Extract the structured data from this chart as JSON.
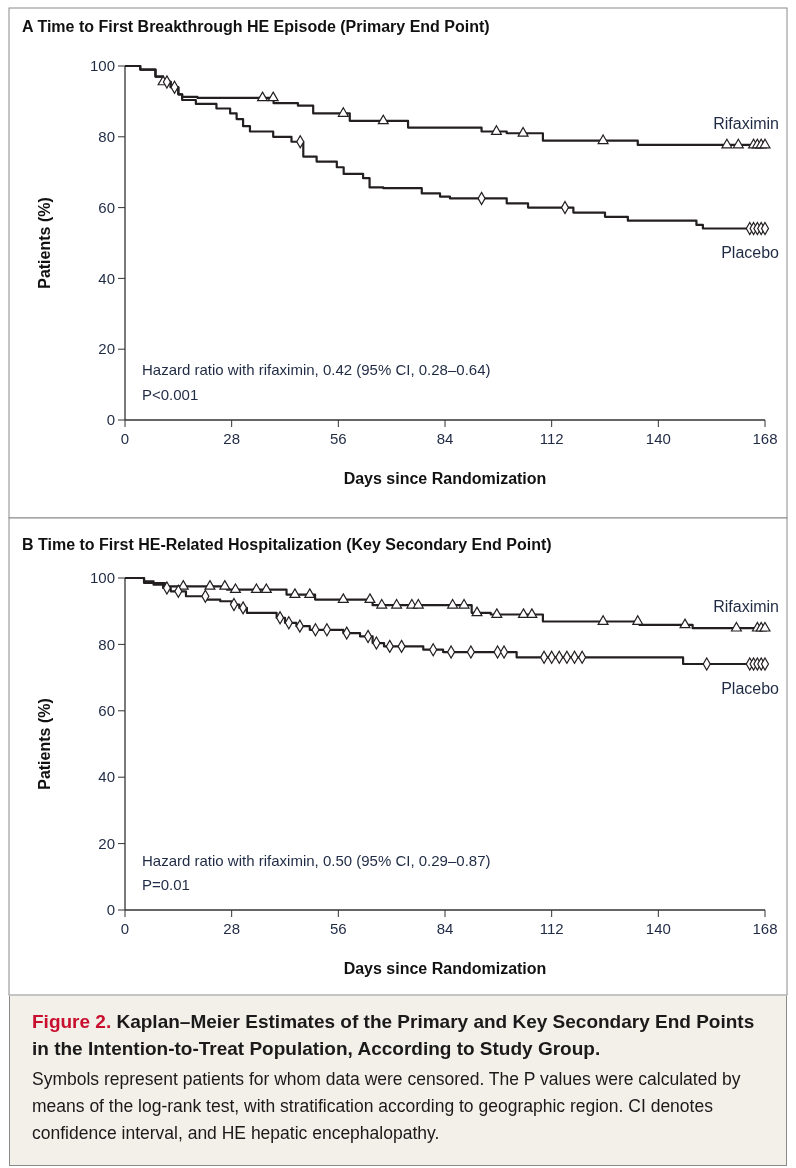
{
  "chart_data": [
    {
      "type": "step",
      "title": "A  Time to First Breakthrough HE Episode (Primary End Point)",
      "xlabel": "Days since Randomization",
      "ylabel": "Patients (%)",
      "xlim": [
        0,
        168
      ],
      "xticks": [
        0,
        28,
        56,
        84,
        112,
        140,
        168
      ],
      "ylim": [
        0,
        100
      ],
      "yticks": [
        0,
        20,
        40,
        60,
        80,
        100
      ],
      "annotations": [
        "Hazard ratio with rifaximin, 0.42 (95% CI, 0.28–0.64)",
        "P<0.001"
      ],
      "series": [
        {
          "name": "Rifaximin",
          "color": "#231f20",
          "x": [
            0,
            4,
            8,
            10,
            12,
            14,
            15,
            19,
            39,
            45.4,
            49.4,
            59,
            74.3,
            93.6,
            100.2,
            109.7,
            134.6,
            168
          ],
          "values": [
            100,
            99,
            97,
            95.5,
            94,
            92,
            91.3,
            91,
            89.5,
            88.8,
            86.6,
            84.5,
            82.6,
            81.5,
            81,
            78.9,
            77.7,
            77.7
          ]
        },
        {
          "name": "Placebo",
          "color": "#231f20",
          "x": [
            0,
            4,
            8,
            10,
            12,
            14,
            15,
            18.6,
            24,
            27.6,
            29.3,
            31,
            32.8,
            38.9,
            43.7,
            46.8,
            50.3,
            55.6,
            57.4,
            62.5,
            64.2,
            67.8,
            77.9,
            82.7,
            85.3,
            100.2,
            105.8,
            117.7,
            126,
            132,
            150,
            151.7,
            168
          ],
          "values": [
            100,
            99,
            97,
            95.5,
            94,
            92,
            90.4,
            89.3,
            88,
            86.6,
            85,
            83,
            81.5,
            80,
            78.6,
            74.4,
            73,
            71.4,
            69.5,
            68.3,
            65.7,
            65.5,
            64,
            63.1,
            62.6,
            61.2,
            60,
            58.6,
            57.4,
            56.3,
            55.1,
            54.1,
            54.1
          ]
        },
        {
          "type": "scatter",
          "marker": "triangle",
          "color": "#231f20",
          "x": [
            10,
            36.1,
            38.9,
            57.3,
            67.8,
            97.5,
            104.5,
            125.5,
            158,
            161,
            165,
            166,
            167,
            168
          ],
          "values": [
            95.5,
            91,
            91,
            86.6,
            84.5,
            81.5,
            81,
            78.9,
            77.7,
            77.7,
            77.7,
            77.7,
            77.7,
            77.7
          ]
        },
        {
          "type": "scatter",
          "marker": "diamond",
          "color": "#231f20",
          "x": [
            11,
            13,
            46,
            93.6,
            115.5,
            164,
            165,
            166,
            167,
            168
          ],
          "values": [
            95.5,
            94,
            78.6,
            62.6,
            60,
            54.1,
            54.1,
            54.1,
            54.1,
            54.1
          ]
        }
      ]
    },
    {
      "type": "step",
      "title": "B  Time to First HE-Related Hospitalization (Key Secondary End Point)",
      "xlabel": "Days since Randomization",
      "ylabel": "Patients (%)",
      "xlim": [
        0,
        168
      ],
      "xticks": [
        0,
        28,
        56,
        84,
        112,
        140,
        168
      ],
      "ylim": [
        0,
        100
      ],
      "yticks": [
        0,
        20,
        40,
        60,
        80,
        100
      ],
      "annotations": [
        "Hazard ratio with rifaximin, 0.50 (95% CI, 0.29–0.87)",
        "P=0.01",
        "Figure 2.",
        "Kaplan–Meier Estimates of the Primary and Key Secondary End Points in the Intention-to-Treat Population, According to Study Group.",
        "Symbols represent patients for whom data were censored. The P values were calculated by means of the log-rank test, with stratification according to geographic region. CI denotes confidence interval, and HE hepatic encephalopathy."
      ],
      "series": [
        {
          "name": "Rifaximin",
          "color": "#231f20",
          "x": [
            0,
            5,
            10.5,
            26.7,
            42.4,
            49.9,
            65,
            91,
            96,
            109.7,
            135,
            149,
            168
          ],
          "values": [
            100,
            98.5,
            97.5,
            96.5,
            95,
            93.5,
            91.8,
            89.5,
            89,
            86.9,
            85.9,
            84.9,
            84.9
          ]
        },
        {
          "name": "Placebo",
          "color": "#231f20",
          "x": [
            0,
            5,
            7.5,
            10,
            12,
            16,
            21.4,
            25,
            28,
            30,
            32,
            39.8,
            42,
            45,
            48.5,
            57.3,
            61.7,
            65,
            68,
            78.3,
            83.5,
            102.8,
            146.5,
            168
          ],
          "values": [
            100,
            99,
            98,
            97,
            96,
            94.5,
            93.5,
            93,
            92,
            91,
            89.5,
            88,
            86.5,
            85.5,
            84.4,
            83.4,
            82.4,
            80.4,
            79.4,
            78.4,
            77.7,
            76.1,
            74.1,
            74.1
          ]
        },
        {
          "type": "scatter",
          "marker": "triangle",
          "color": "#231f20",
          "x": [
            15.3,
            22.3,
            26.2,
            29,
            34.5,
            37.1,
            44.6,
            48.5,
            57.3,
            64.3,
            67.4,
            71.3,
            75.3,
            77,
            86,
            89,
            92.4,
            97.6,
            104.6,
            106.8,
            125.5,
            134.6,
            147,
            160.5,
            166,
            167,
            168
          ],
          "values": [
            97.5,
            97.5,
            97.5,
            96.5,
            96.5,
            96.5,
            95,
            95,
            93.5,
            93.5,
            91.8,
            91.8,
            91.8,
            91.8,
            91.8,
            91.8,
            89.5,
            89,
            89,
            89,
            86.9,
            86.9,
            85.9,
            84.9,
            84.9,
            84.9,
            84.9
          ]
        },
        {
          "type": "scatter",
          "marker": "diamond",
          "color": "#231f20",
          "x": [
            11,
            14,
            21.1,
            28.6,
            31,
            40.7,
            43,
            45.9,
            50,
            53,
            58.2,
            63.8,
            66,
            69.5,
            72.6,
            80.9,
            85.6,
            90.8,
            97.8,
            99.5,
            110,
            112,
            114,
            116,
            118,
            120,
            152.7,
            164,
            165,
            166,
            167,
            168
          ],
          "values": [
            97,
            96,
            94.5,
            92,
            91,
            88,
            86.5,
            85.5,
            84.4,
            84.4,
            83.4,
            82.4,
            80.4,
            79.4,
            79.4,
            78.4,
            77.7,
            77.7,
            77.7,
            77.7,
            76.1,
            76.1,
            76.1,
            76.1,
            76.1,
            76.1,
            74.1,
            74.1,
            74.1,
            74.1,
            74.1,
            74.1
          ]
        }
      ]
    }
  ]
}
